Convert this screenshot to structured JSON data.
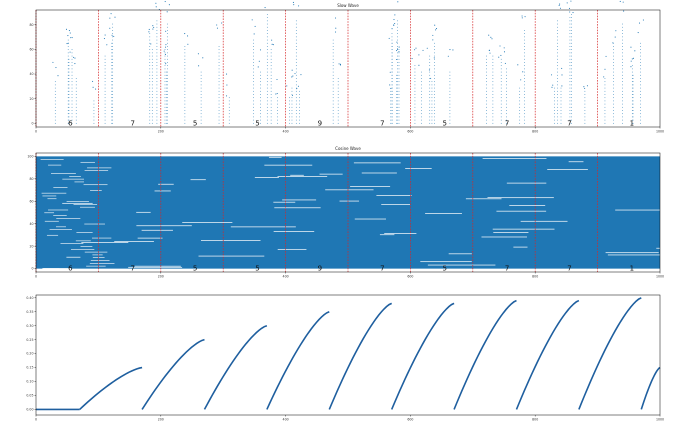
{
  "colors": {
    "spike": "#1f77b4",
    "marker": "#d62728",
    "frame": "#000000",
    "trace": "#1f5f9f"
  },
  "chart_data": [
    {
      "type": "scatter",
      "title": "Slow Wave",
      "xlim": [
        0,
        1000
      ],
      "ylim": [
        -3,
        92
      ],
      "x_ticks": [
        "0",
        "200",
        "400",
        "600",
        "800",
        "1000"
      ],
      "y_ticks": [
        "0",
        "20",
        "40",
        "60",
        "80"
      ],
      "grid": false,
      "markers_x": [
        0,
        100,
        200,
        300,
        400,
        500,
        600,
        700,
        800,
        900
      ],
      "digits": [
        "6",
        "7",
        "5",
        "5",
        "9",
        "7",
        "5",
        "7",
        "7",
        "1"
      ],
      "digits_x": [
        55,
        155,
        255,
        355,
        455,
        555,
        655,
        755,
        855,
        955
      ]
    },
    {
      "type": "scatter",
      "title": "Cosine Wave",
      "xlim": [
        0,
        1000
      ],
      "ylim": [
        -3,
        103
      ],
      "x_ticks": [
        "0",
        "200",
        "400",
        "600",
        "800",
        "1000"
      ],
      "y_ticks": [
        "0",
        "20",
        "40",
        "60",
        "80",
        "100"
      ],
      "grid": false,
      "markers_x": [
        0,
        100,
        200,
        300,
        400,
        500,
        600,
        700,
        800,
        900
      ],
      "digits": [
        "6",
        "7",
        "5",
        "5",
        "9",
        "7",
        "5",
        "7",
        "7",
        "1"
      ],
      "digits_x": [
        55,
        155,
        255,
        355,
        455,
        555,
        655,
        755,
        855,
        955
      ]
    },
    {
      "type": "line",
      "title": "",
      "xlim": [
        0,
        1000
      ],
      "ylim": [
        -0.02,
        0.41
      ],
      "x_ticks": [
        "0",
        "200",
        "400",
        "600",
        "800",
        "1000"
      ],
      "y_ticks": [
        "0.00",
        "0.05",
        "0.10",
        "0.15",
        "0.20",
        "0.25",
        "0.30",
        "0.35",
        "0.40"
      ],
      "grid": false,
      "series": [
        {
          "x": [
            0,
            70
          ],
          "y": [
            0.0,
            0.0
          ]
        },
        {
          "x": [
            70,
            170
          ],
          "y": [
            0.0,
            0.15
          ]
        },
        {
          "x": [
            170,
            270
          ],
          "y": [
            0.0,
            0.25
          ]
        },
        {
          "x": [
            270,
            370
          ],
          "y": [
            0.0,
            0.3
          ]
        },
        {
          "x": [
            370,
            470
          ],
          "y": [
            0.0,
            0.35
          ]
        },
        {
          "x": [
            470,
            570
          ],
          "y": [
            0.0,
            0.38
          ]
        },
        {
          "x": [
            570,
            670
          ],
          "y": [
            0.0,
            0.38
          ]
        },
        {
          "x": [
            670,
            770
          ],
          "y": [
            0.0,
            0.39
          ]
        },
        {
          "x": [
            770,
            870
          ],
          "y": [
            0.0,
            0.39
          ]
        },
        {
          "x": [
            870,
            970
          ],
          "y": [
            0.0,
            0.4
          ]
        },
        {
          "x": [
            970,
            1000
          ],
          "y": [
            0.0,
            0.15
          ]
        }
      ]
    }
  ]
}
